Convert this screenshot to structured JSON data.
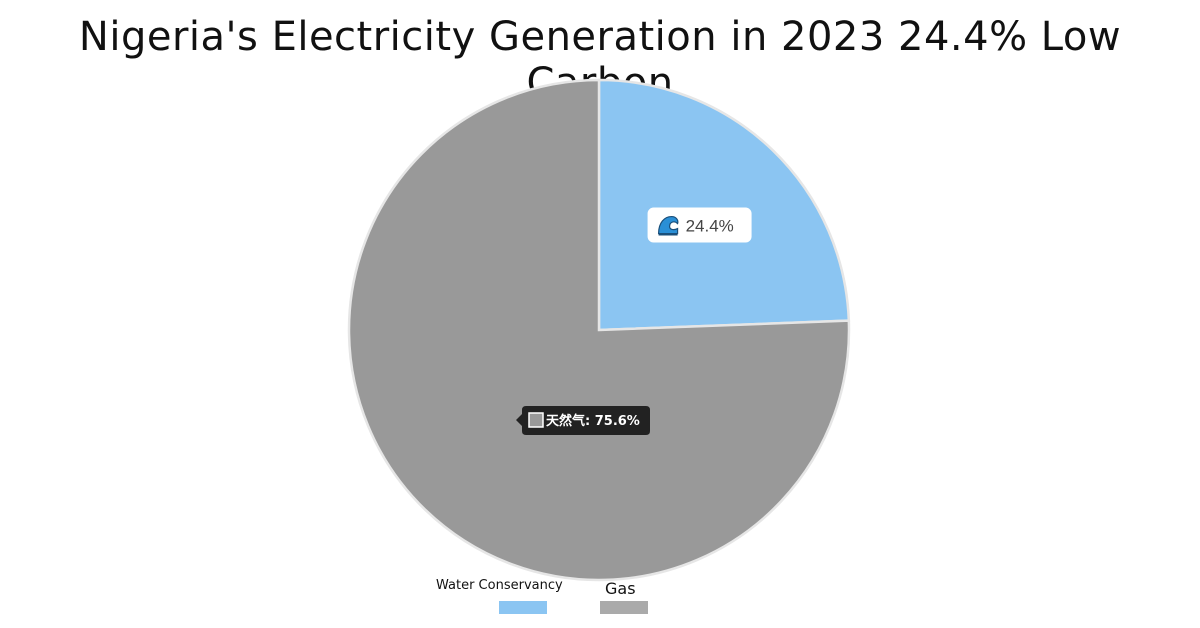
{
  "chart_data": {
    "type": "pie",
    "title": "Nigeria's Electricity Generation in 2023 24.4% Low Carbon",
    "slices": [
      {
        "name": "Water  Conservancy",
        "value": 24.4,
        "label": "24.4%",
        "color": "#8BC5F2"
      },
      {
        "name": "Gas",
        "value": 75.6,
        "label": "75.6%",
        "color": "#999999"
      }
    ],
    "tooltip": {
      "series_label": "天然气",
      "value_label": "75.6%"
    },
    "legend_position": "bottom",
    "start_angle": "top",
    "direction": "clockwise"
  },
  "icons": {
    "water": "wave-icon"
  }
}
